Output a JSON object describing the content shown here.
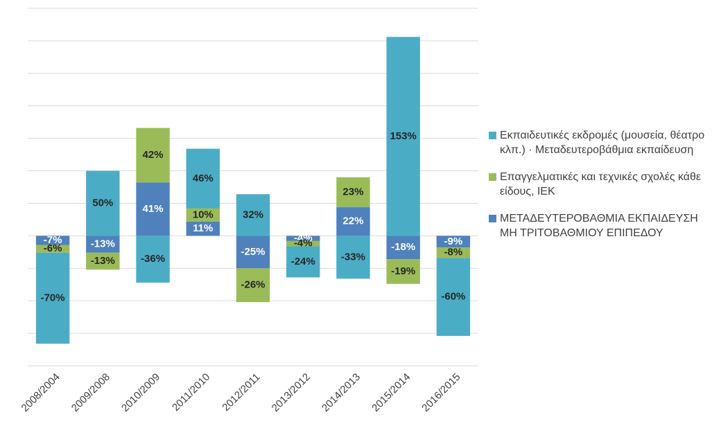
{
  "chart_data": {
    "type": "stacked-bar",
    "categories": [
      "2008/2004",
      "2009/2008",
      "2010/2009",
      "2011/2010",
      "2012/2011",
      "2013/2012",
      "2014/2013",
      "2015/2014",
      "2016/2015"
    ],
    "series": [
      {
        "name": "Εκπαιδευτικές εκδρομές (μουσεία, θέατρο κλπ.) · Μεταδευτεροβάθμια εκπαίδευση",
        "color": "#4bacc6",
        "values": [
          -70,
          50,
          -36,
          46,
          32,
          -24,
          -33,
          153,
          -60
        ],
        "value_labels": [
          "-70%",
          "50%",
          "-36%",
          "46%",
          "32%",
          "-24%",
          "-33%",
          "153%",
          "-60%"
        ]
      },
      {
        "name": "Επαγγελματικές και τεχνικές σχολές κάθε είδους, ΙΕΚ",
        "color": "#9bbb59",
        "values": [
          -6,
          -13,
          42,
          10,
          -26,
          -4,
          23,
          -19,
          -8
        ],
        "value_labels": [
          "-6%",
          "-13%",
          "42%",
          "10%",
          "-26%",
          "-4%",
          "23%",
          "-19%",
          "-8%"
        ]
      },
      {
        "name": "ΜΕΤΑΔΕΥΤΕΡΟΒΑΘΜΙΑ ΕΚΠΑΙΔΕΥΣΗ ΜΗ ΤΡΙΤΟΒΑΘΜΙΟΥ ΕΠΙΠΕΔΟΥ",
        "color": "#4f81bd",
        "values": [
          -7,
          -13,
          41,
          11,
          -25,
          -4,
          22,
          -18,
          -9
        ],
        "value_labels": [
          "-7%",
          "-13%",
          "41%",
          "11%",
          "-25%",
          "-4%",
          "22%",
          "-18%",
          "-9%"
        ]
      }
    ],
    "ylim": [
      -100,
      175
    ],
    "yticks": [
      -100,
      -75,
      -50,
      -25,
      0,
      25,
      50,
      75,
      100,
      125,
      150,
      175
    ],
    "grid": true
  }
}
